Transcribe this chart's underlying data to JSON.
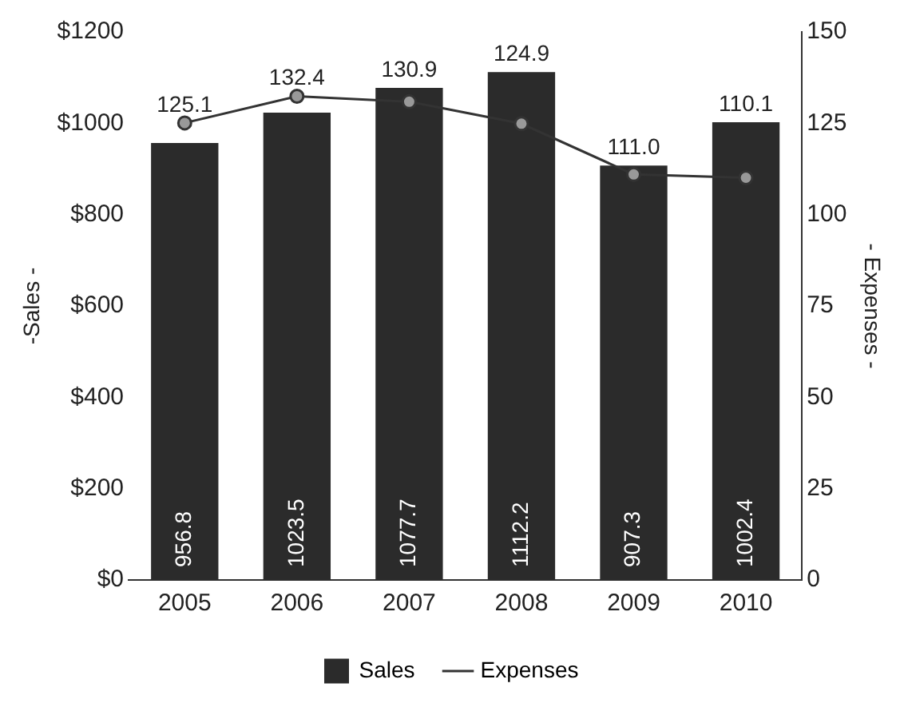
{
  "chart_data": {
    "type": "bar",
    "categories": [
      "2005",
      "2006",
      "2007",
      "2008",
      "2009",
      "2010"
    ],
    "ylabel": "-Sales -",
    "y2label": "- Expenses -",
    "ylim": [
      0,
      1200
    ],
    "yticks": [
      {
        "value": 0,
        "label": "$0"
      },
      {
        "value": 200,
        "label": "$200"
      },
      {
        "value": 400,
        "label": "$400"
      },
      {
        "value": 600,
        "label": "$600"
      },
      {
        "value": 800,
        "label": "$800"
      },
      {
        "value": 1000,
        "label": "$1000"
      },
      {
        "value": 1200,
        "label": "$1200"
      }
    ],
    "y2lim": [
      0,
      150
    ],
    "y2ticks": [
      0,
      25,
      50,
      75,
      100,
      125,
      150
    ],
    "series": [
      {
        "name": "Sales",
        "color": "#2b2b2b",
        "values": [
          956.8,
          1023.5,
          1077.7,
          1112.2,
          907.3,
          1002.4
        ]
      },
      {
        "name": "Expenses",
        "type": "line",
        "axis": "y2",
        "color": "#333333",
        "marker": "circle",
        "values": [
          125.1,
          132.4,
          130.9,
          124.9,
          111.0,
          110.1
        ],
        "value_labels": [
          "125.1",
          "132.4",
          "130.9",
          "124.9",
          "111.0",
          "110.1"
        ]
      }
    ],
    "data_labels": true,
    "grid": false,
    "legend": "bottom"
  }
}
